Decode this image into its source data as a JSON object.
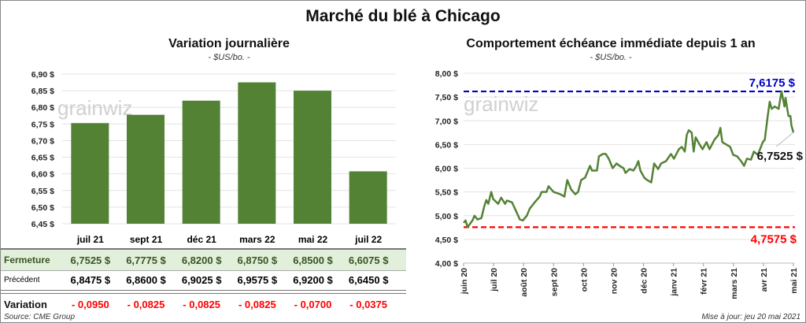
{
  "title": "Marché du blé à Chicago",
  "watermark": "grainwiz",
  "left_panel": {
    "title": "Variation  journalière",
    "unit": "- $US/bo. -",
    "table": {
      "row_labels": [
        "Fermeture",
        "Précédent",
        "Variation"
      ],
      "fermeture": [
        "6,7525  $",
        "6,7775  $",
        "6,8200  $",
        "6,8750  $",
        "6,8500  $",
        "6,6075  $"
      ],
      "precedent": [
        "6,8475  $",
        "6,8600  $",
        "6,9025  $",
        "6,9575  $",
        "6,9200  $",
        "6,6450  $"
      ],
      "variation": [
        "- 0,0950",
        "- 0,0825",
        "- 0,0825",
        "- 0,0825",
        "- 0,0700",
        "- 0,0375"
      ]
    },
    "source": "Source: CME Group"
  },
  "right_panel": {
    "title": "Comportement  échéance immédiate depuis 1 an",
    "unit": "- $US/bo. -",
    "updated": "Mise à jour: jeu 20 mai 2021"
  },
  "colors": {
    "bar": "#548235",
    "line": "#548235",
    "max": "#0000cc",
    "min": "#ff0000",
    "fermeture_bg": "#e2efda",
    "variation": "#ff0000"
  },
  "chart_data": [
    {
      "type": "bar",
      "categories": [
        "juil 21",
        "sept 21",
        "déc 21",
        "mars 22",
        "mai 22",
        "juil 22"
      ],
      "values": [
        6.7525,
        6.7775,
        6.82,
        6.875,
        6.85,
        6.6075
      ],
      "ylim": [
        6.45,
        6.9
      ],
      "yticks": [
        "6,45 $",
        "6,50 $",
        "6,55 $",
        "6,60 $",
        "6,65 $",
        "6,70 $",
        "6,75 $",
        "6,80 $",
        "6,85 $",
        "6,90 $"
      ],
      "grid": true
    },
    {
      "type": "line",
      "ylim": [
        4.0,
        8.0
      ],
      "yticks": [
        "4,00 $",
        "4,50 $",
        "5,00 $",
        "5,50 $",
        "6,00 $",
        "6,50 $",
        "7,00 $",
        "7,50 $",
        "8,00 $"
      ],
      "xticks": [
        "juin 20",
        "juil 20",
        "août 20",
        "sept 20",
        "oct 20",
        "nov 20",
        "déc 20",
        "janv 21",
        "févr 21",
        "mars 21",
        "avr 21",
        "mai 21"
      ],
      "grid": true,
      "max_line": {
        "value": 7.6175,
        "label": "7,6175 $"
      },
      "min_line": {
        "value": 4.7575,
        "label": "4,7575 $"
      },
      "last_label": "6,7525 $",
      "series": [
        [
          "2020-06-01",
          4.85
        ],
        [
          "2020-06-03",
          4.9
        ],
        [
          "2020-06-05",
          4.7575
        ],
        [
          "2020-06-10",
          4.9
        ],
        [
          "2020-06-12",
          5.0
        ],
        [
          "2020-06-15",
          4.92
        ],
        [
          "2020-06-19",
          4.95
        ],
        [
          "2020-06-22",
          5.2
        ],
        [
          "2020-06-24",
          5.33
        ],
        [
          "2020-06-26",
          5.25
        ],
        [
          "2020-06-29",
          5.5
        ],
        [
          "2020-07-01",
          5.35
        ],
        [
          "2020-07-06",
          5.25
        ],
        [
          "2020-07-09",
          5.38
        ],
        [
          "2020-07-13",
          5.25
        ],
        [
          "2020-07-15",
          5.32
        ],
        [
          "2020-07-20",
          5.28
        ],
        [
          "2020-07-24",
          5.1
        ],
        [
          "2020-07-28",
          4.92
        ],
        [
          "2020-07-31",
          4.9
        ],
        [
          "2020-08-04",
          5.0
        ],
        [
          "2020-08-07",
          5.15
        ],
        [
          "2020-08-12",
          5.28
        ],
        [
          "2020-08-17",
          5.4
        ],
        [
          "2020-08-19",
          5.5
        ],
        [
          "2020-08-24",
          5.5
        ],
        [
          "2020-08-26",
          5.62
        ],
        [
          "2020-08-31",
          5.5
        ],
        [
          "2020-09-07",
          5.45
        ],
        [
          "2020-09-11",
          5.4
        ],
        [
          "2020-09-14",
          5.75
        ],
        [
          "2020-09-18",
          5.55
        ],
        [
          "2020-09-22",
          5.45
        ],
        [
          "2020-09-25",
          5.5
        ],
        [
          "2020-09-28",
          5.75
        ],
        [
          "2020-10-02",
          5.8
        ],
        [
          "2020-10-07",
          6.05
        ],
        [
          "2020-10-09",
          5.95
        ],
        [
          "2020-10-14",
          5.95
        ],
        [
          "2020-10-16",
          6.25
        ],
        [
          "2020-10-20",
          6.3
        ],
        [
          "2020-10-23",
          6.3
        ],
        [
          "2020-10-26",
          6.2
        ],
        [
          "2020-10-30",
          6.0
        ],
        [
          "2020-11-03",
          6.1
        ],
        [
          "2020-11-06",
          6.05
        ],
        [
          "2020-11-10",
          6.0
        ],
        [
          "2020-11-12",
          5.9
        ],
        [
          "2020-11-16",
          5.98
        ],
        [
          "2020-11-20",
          5.95
        ],
        [
          "2020-11-23",
          6.05
        ],
        [
          "2020-11-25",
          6.15
        ],
        [
          "2020-11-27",
          5.95
        ],
        [
          "2020-12-01",
          5.8
        ],
        [
          "2020-12-04",
          5.75
        ],
        [
          "2020-12-08",
          5.7
        ],
        [
          "2020-12-11",
          6.1
        ],
        [
          "2020-12-15",
          5.98
        ],
        [
          "2020-12-18",
          6.1
        ],
        [
          "2020-12-23",
          6.15
        ],
        [
          "2020-12-28",
          6.3
        ],
        [
          "2020-12-31",
          6.2
        ],
        [
          "2021-01-05",
          6.4
        ],
        [
          "2021-01-08",
          6.45
        ],
        [
          "2021-01-11",
          6.35
        ],
        [
          "2021-01-13",
          6.7
        ],
        [
          "2021-01-15",
          6.8
        ],
        [
          "2021-01-18",
          6.75
        ],
        [
          "2021-01-20",
          6.35
        ],
        [
          "2021-01-22",
          6.65
        ],
        [
          "2021-01-26",
          6.5
        ],
        [
          "2021-01-29",
          6.4
        ],
        [
          "2021-02-02",
          6.55
        ],
        [
          "2021-02-05",
          6.4
        ],
        [
          "2021-02-10",
          6.6
        ],
        [
          "2021-02-14",
          6.7
        ],
        [
          "2021-02-16",
          6.85
        ],
        [
          "2021-02-18",
          6.55
        ],
        [
          "2021-02-22",
          6.5
        ],
        [
          "2021-02-26",
          6.45
        ],
        [
          "2021-03-01",
          6.28
        ],
        [
          "2021-03-05",
          6.25
        ],
        [
          "2021-03-09",
          6.15
        ],
        [
          "2021-03-12",
          6.05
        ],
        [
          "2021-03-15",
          6.2
        ],
        [
          "2021-03-19",
          6.18
        ],
        [
          "2021-03-22",
          6.35
        ],
        [
          "2021-03-26",
          6.28
        ],
        [
          "2021-03-31",
          6.55
        ],
        [
          "2021-04-02",
          6.6
        ],
        [
          "2021-04-05",
          7.1
        ],
        [
          "2021-04-07",
          7.4
        ],
        [
          "2021-04-09",
          7.25
        ],
        [
          "2021-04-12",
          7.3
        ],
        [
          "2021-04-16",
          7.25
        ],
        [
          "2021-04-19",
          7.6175
        ],
        [
          "2021-04-22",
          7.3
        ],
        [
          "2021-04-23",
          7.48
        ],
        [
          "2021-04-26",
          7.1
        ],
        [
          "2021-04-28",
          7.1
        ],
        [
          "2021-04-29",
          6.9
        ],
        [
          "2021-05-01",
          6.7525
        ]
      ]
    }
  ]
}
